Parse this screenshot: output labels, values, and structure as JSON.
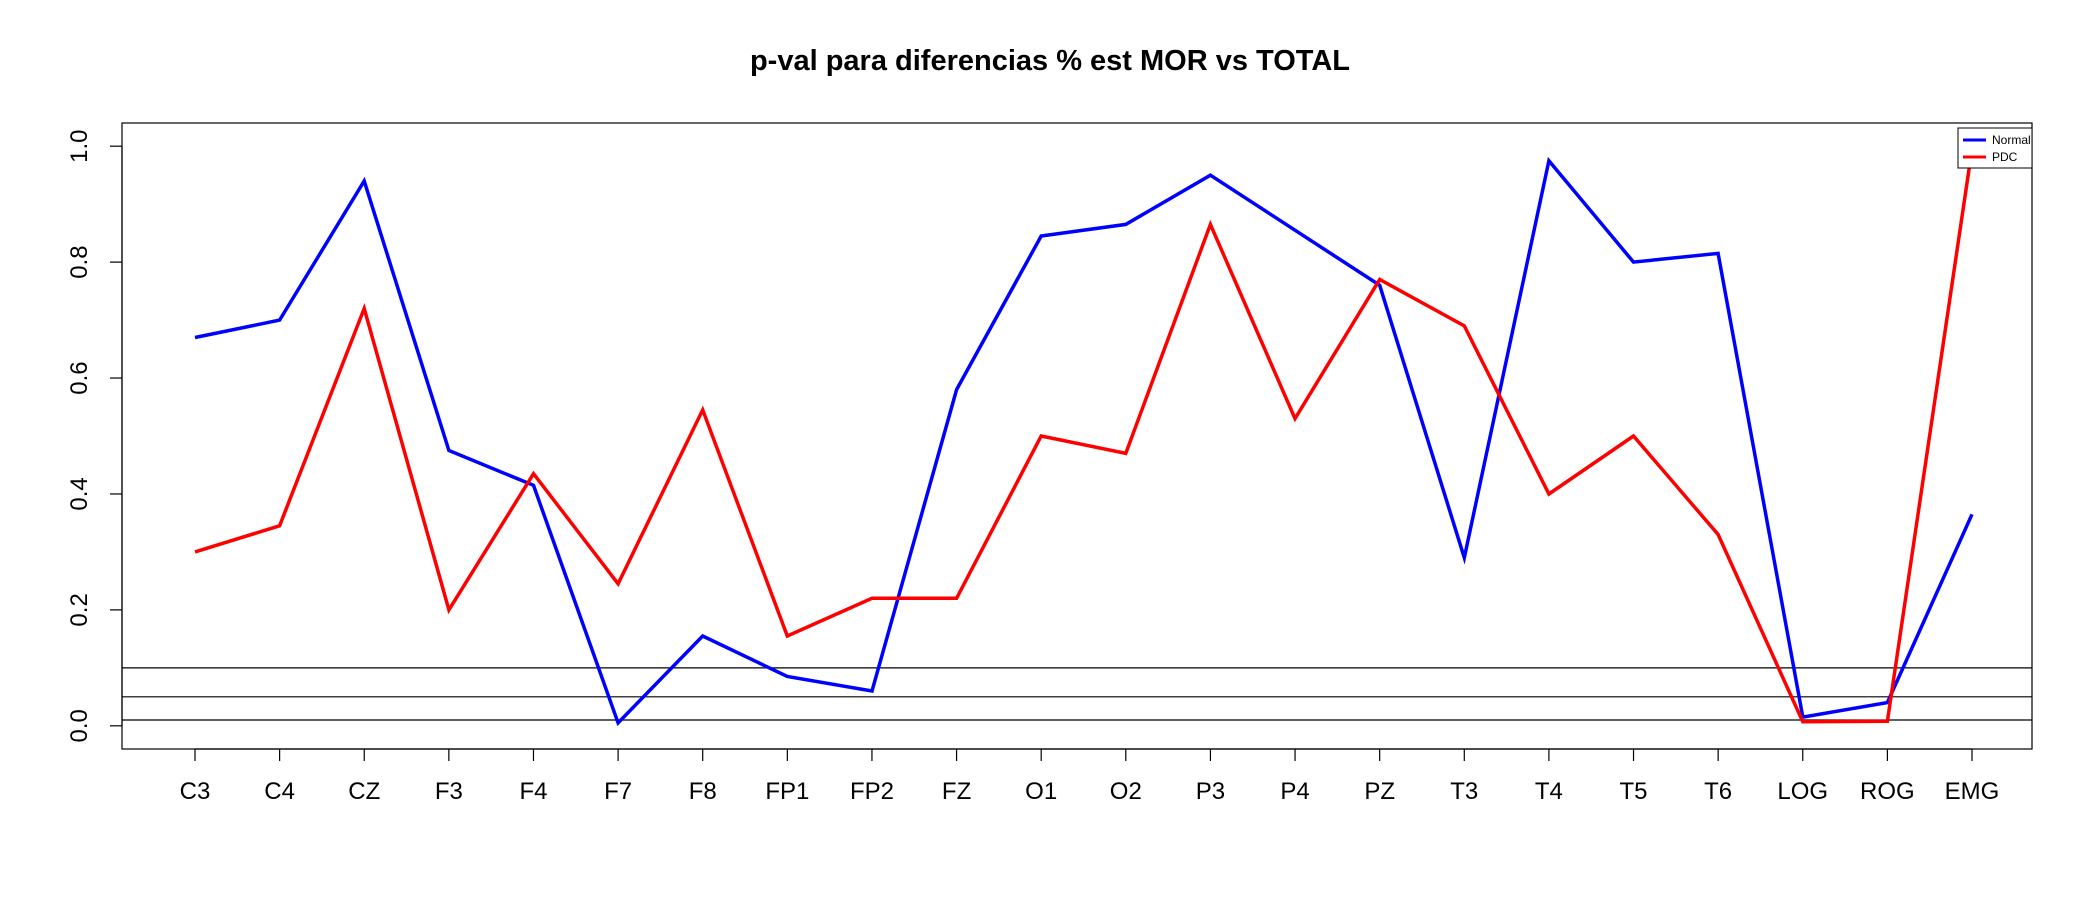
{
  "chart_data": {
    "type": "line",
    "title": "p-val para diferencias % est MOR vs TOTAL",
    "xlabel": "",
    "ylabel": "",
    "categories": [
      "C3",
      "C4",
      "CZ",
      "F3",
      "F4",
      "F7",
      "F8",
      "FP1",
      "FP2",
      "FZ",
      "O1",
      "O2",
      "P3",
      "P4",
      "PZ",
      "T3",
      "T4",
      "T5",
      "T6",
      "LOG",
      "ROG",
      "EMG"
    ],
    "ylim": [
      -0.04,
      1.04
    ],
    "yticks": [
      "0.0",
      "0.2",
      "0.4",
      "0.6",
      "0.8",
      "1.0"
    ],
    "reference_lines": [
      0.01,
      0.05,
      0.1
    ],
    "legend_position": "top-right",
    "grid": false,
    "series": [
      {
        "name": "Normal",
        "color": "#0000ff",
        "values": [
          0.67,
          0.7,
          0.94,
          0.475,
          0.415,
          0.005,
          0.155,
          0.085,
          0.06,
          0.58,
          0.845,
          0.865,
          0.95,
          0.855,
          0.76,
          0.29,
          0.975,
          0.8,
          0.815,
          0.015,
          0.04,
          0.365
        ]
      },
      {
        "name": "PDC",
        "color": "#ff0000",
        "values": [
          0.3,
          0.345,
          0.72,
          0.2,
          0.435,
          0.245,
          0.545,
          0.155,
          0.22,
          0.22,
          0.5,
          0.47,
          0.865,
          0.53,
          0.77,
          0.69,
          0.4,
          0.5,
          0.33,
          0.007,
          0.008,
          0.995
        ]
      }
    ]
  }
}
